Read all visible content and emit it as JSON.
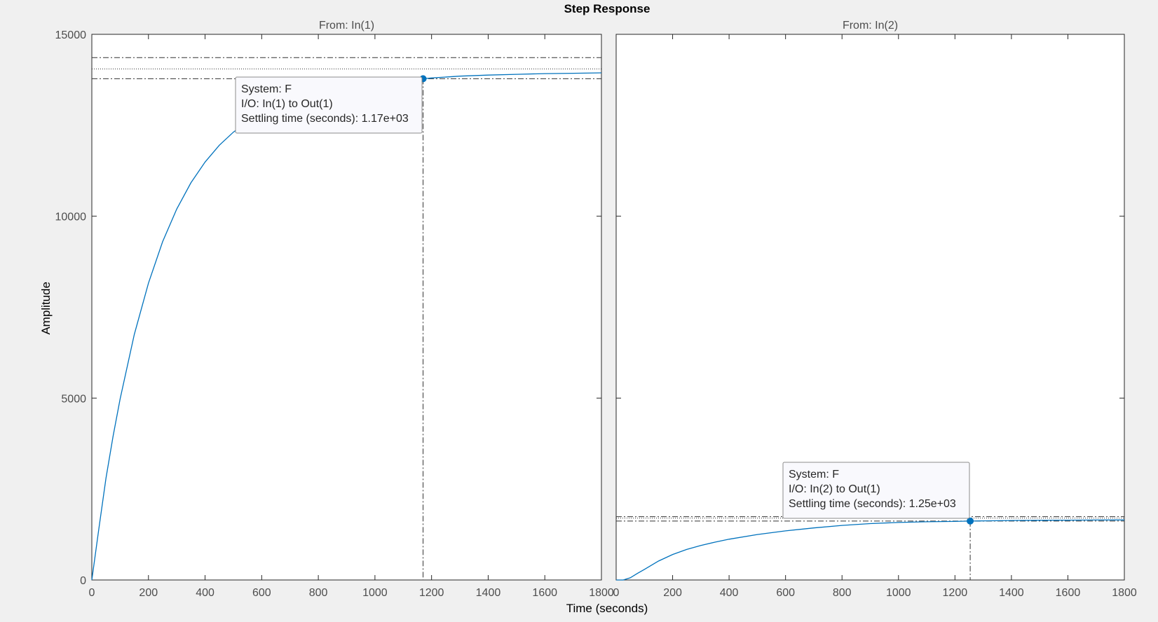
{
  "figure": {
    "title": "Step Response",
    "xlabel": "Time (seconds)",
    "ylabel": "Amplitude"
  },
  "chart_data": [
    {
      "type": "line",
      "subtitle": "From: In(1)",
      "xlim": [
        0,
        1800
      ],
      "ylim": [
        0,
        15000
      ],
      "xticks": [
        0,
        200,
        400,
        600,
        800,
        1000,
        1200,
        1400,
        1600,
        1800
      ],
      "yticks": [
        0,
        5000,
        10000,
        15000
      ],
      "ytick_labels": [
        "0",
        "5000",
        "10000",
        "15000"
      ],
      "grid": false,
      "series": [
        {
          "x": [
            0,
            25,
            50,
            75,
            100,
            150,
            200,
            250,
            300,
            350,
            400,
            450,
            500,
            550,
            600,
            650,
            700,
            800,
            900,
            1000,
            1100,
            1170,
            1200,
            1300,
            1400,
            1500,
            1600,
            1700,
            1800
          ],
          "y": [
            0,
            1420,
            2800,
            3950,
            4980,
            6750,
            8160,
            9300,
            10200,
            10920,
            11490,
            11950,
            12310,
            12600,
            12830,
            13010,
            13160,
            13390,
            13550,
            13660,
            13740,
            13780,
            13800,
            13850,
            13880,
            13900,
            13920,
            13930,
            13940
          ],
          "color": "#0072BD"
        }
      ],
      "final_value": 14050,
      "settling_band": [
        13780,
        14360
      ],
      "settling_time": 1170,
      "settling_value": 13780,
      "annotation": {
        "system": "System: F",
        "io": "I/O: In(1) to Out(1)",
        "settling": "Settling time (seconds): 1.17e+03"
      }
    },
    {
      "type": "line",
      "subtitle": "From: In(2)",
      "xlim": [
        0,
        1800
      ],
      "ylim": [
        0,
        15000
      ],
      "xticks": [
        0,
        200,
        400,
        600,
        800,
        1000,
        1200,
        1400,
        1600,
        1800
      ],
      "yticks": [
        0,
        5000,
        10000,
        15000
      ],
      "grid": false,
      "series": [
        {
          "x": [
            0,
            25,
            50,
            75,
            100,
            150,
            200,
            250,
            300,
            350,
            400,
            500,
            600,
            700,
            800,
            900,
            1000,
            1100,
            1200,
            1254,
            1300,
            1400,
            1500,
            1600,
            1700,
            1800
          ],
          "y": [
            0,
            0,
            60,
            180,
            290,
            520,
            700,
            840,
            950,
            1040,
            1120,
            1250,
            1350,
            1430,
            1500,
            1550,
            1580,
            1600,
            1610,
            1620,
            1625,
            1635,
            1640,
            1645,
            1648,
            1650
          ],
          "color": "#0072BD"
        }
      ],
      "final_value": 1700,
      "settling_band": [
        1620,
        1740
      ],
      "settling_time": 1254,
      "settling_value": 1620,
      "annotation": {
        "system": "System: F",
        "io": "I/O: In(2) to Out(1)",
        "settling": "Settling time (seconds): 1.25e+03"
      }
    }
  ]
}
